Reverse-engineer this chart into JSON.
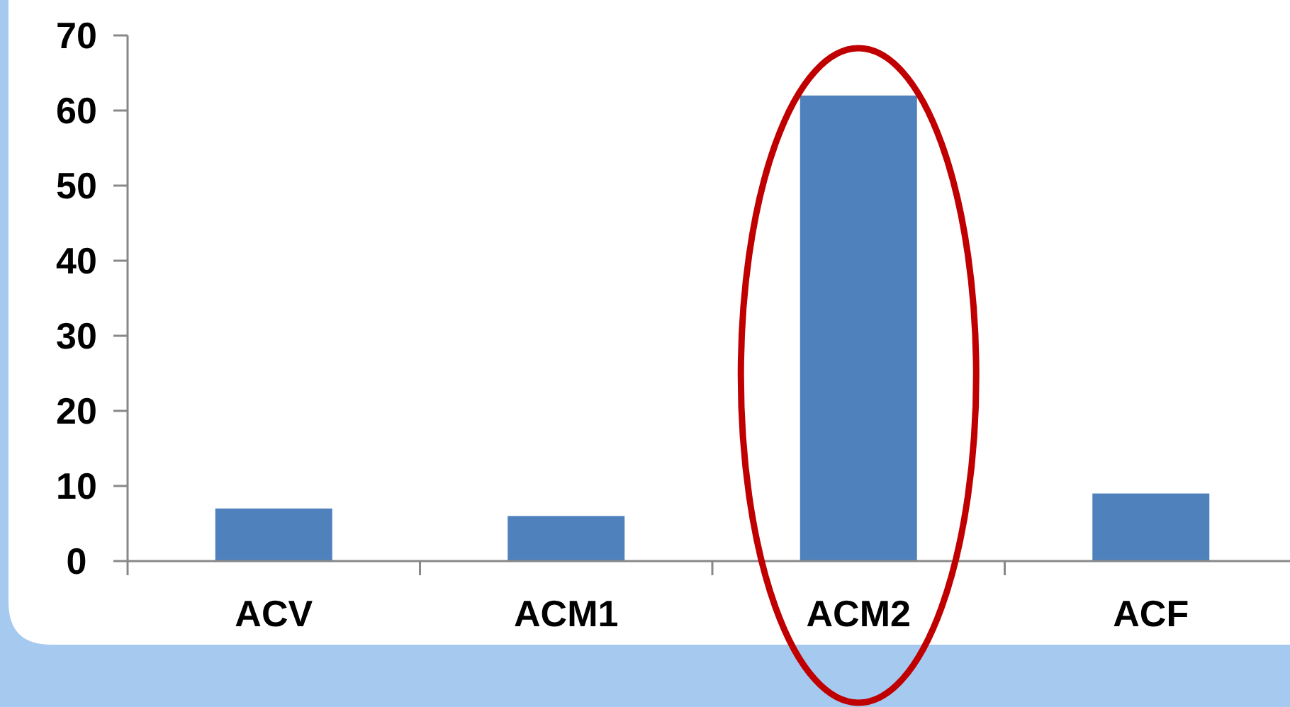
{
  "chart_data": {
    "type": "bar",
    "categories": [
      "ACV",
      "ACM1",
      "ACM2",
      "ACF"
    ],
    "values": [
      7,
      6,
      62,
      9
    ],
    "color": "#4f81bd",
    "ylim": [
      0,
      70
    ],
    "yticks": [
      0,
      10,
      20,
      30,
      40,
      50,
      60,
      70
    ],
    "grid": false
  }
}
